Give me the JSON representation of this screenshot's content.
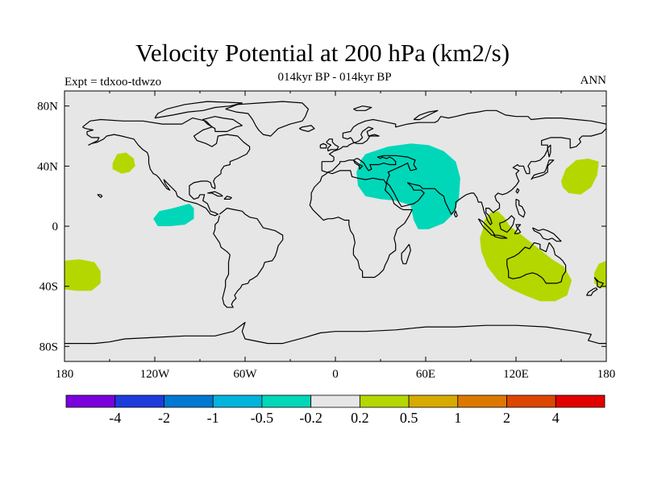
{
  "header": {
    "title": "Velocity Potential at 200 hPa (km2/s)",
    "subtitle": "014kyr BP - 014kyr BP",
    "left_label": "Expt = tdxoo-tdwzo",
    "right_label": "ANN"
  },
  "colors": {
    "background": "#e6e6e6",
    "coast": "#000000",
    "cyan": "#00d7b9",
    "yellow_green": "#b4d700"
  },
  "chart_data": {
    "type": "heatmap",
    "title": "Velocity Potential at 200 hPa (km2/s)",
    "xlim": [
      -180,
      180
    ],
    "ylim": [
      -90,
      90
    ],
    "x_ticks": [
      {
        "value": -180,
        "label": "180"
      },
      {
        "value": -120,
        "label": "120W"
      },
      {
        "value": -60,
        "label": "60W"
      },
      {
        "value": 0,
        "label": "0"
      },
      {
        "value": 60,
        "label": "60E"
      },
      {
        "value": 120,
        "label": "120E"
      },
      {
        "value": 180,
        "label": "180"
      }
    ],
    "y_ticks": [
      {
        "value": 80,
        "label": "80N"
      },
      {
        "value": 40,
        "label": "40N"
      },
      {
        "value": 0,
        "label": "0"
      },
      {
        "value": -40,
        "label": "40S"
      },
      {
        "value": -80,
        "label": "80S"
      }
    ],
    "colorbar": {
      "colors": [
        "#7a00dc",
        "#1e3cdc",
        "#0078d2",
        "#00b4dc",
        "#00d7b9",
        "#e6e6e6",
        "#b4d700",
        "#d7aa00",
        "#dc7800",
        "#dc4600",
        "#e10000"
      ],
      "labels": [
        "-4",
        "-2",
        "-1",
        "-0.5",
        "-0.2",
        "0.2",
        "0.5",
        "1",
        "2",
        "4"
      ]
    },
    "regions": [
      {
        "class": "cyan",
        "lon": [
          20,
          85
        ],
        "lat": [
          0,
          55
        ]
      },
      {
        "class": "cyan",
        "lon": [
          -120,
          -90
        ],
        "lat": [
          0,
          15
        ]
      },
      {
        "class": "yellow_green",
        "lon": [
          -150,
          -130
        ],
        "lat": [
          35,
          50
        ]
      },
      {
        "class": "yellow_green",
        "lon": [
          150,
          175
        ],
        "lat": [
          20,
          45
        ]
      },
      {
        "class": "yellow_green",
        "lon": [
          95,
          160
        ],
        "lat": [
          -50,
          10
        ]
      },
      {
        "class": "yellow_green",
        "lon": [
          -180,
          -155
        ],
        "lat": [
          -45,
          -20
        ]
      },
      {
        "class": "yellow_green",
        "lon": [
          170,
          180
        ],
        "lat": [
          -40,
          -25
        ]
      }
    ]
  }
}
